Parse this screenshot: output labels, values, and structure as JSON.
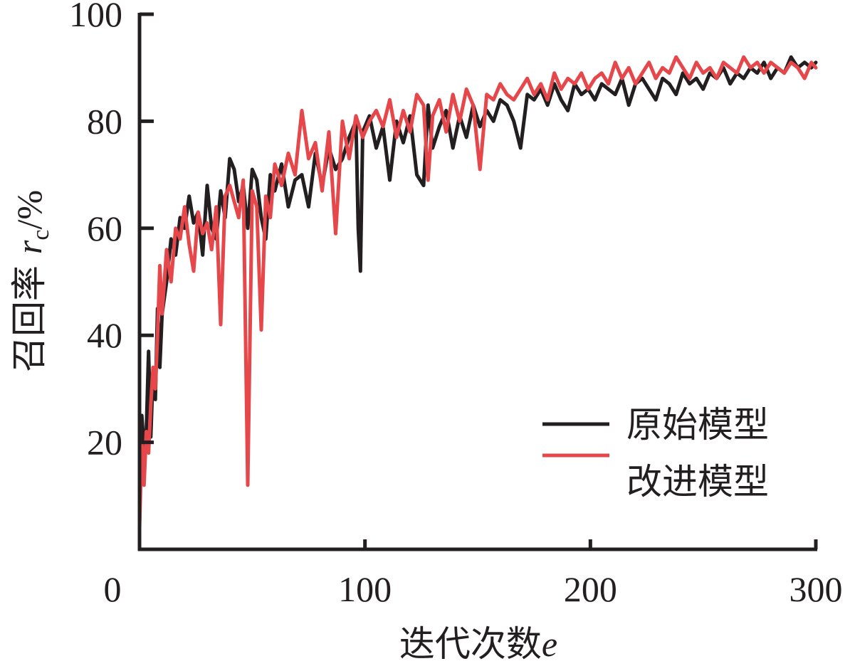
{
  "chart_data": {
    "type": "line",
    "xlabel": "迭代次数",
    "xlabel_var": "e",
    "ylabel": "召回率",
    "ylabel_var": "r",
    "ylabel_sub": "c",
    "ylabel_unit": "/%",
    "xlim": [
      0,
      300
    ],
    "ylim": [
      0,
      100
    ],
    "xticks": [
      0,
      100,
      200,
      300
    ],
    "yticks": [
      20,
      40,
      60,
      80,
      100
    ],
    "grid": false,
    "legend_position": "bottom-right",
    "series": [
      {
        "name": "原始模型",
        "color": "#231f20",
        "x": [
          0,
          1,
          2,
          3,
          4,
          5,
          6,
          7,
          8,
          9,
          10,
          12,
          14,
          16,
          18,
          20,
          22,
          24,
          26,
          28,
          30,
          32,
          34,
          36,
          38,
          40,
          42,
          44,
          46,
          48,
          50,
          52,
          54,
          56,
          58,
          60,
          63,
          66,
          69,
          72,
          75,
          78,
          81,
          84,
          87,
          90,
          93,
          96,
          97,
          98,
          99,
          102,
          105,
          108,
          111,
          114,
          117,
          120,
          123,
          126,
          128,
          130,
          133,
          136,
          139,
          142,
          145,
          148,
          151,
          154,
          157,
          160,
          163,
          166,
          169,
          172,
          175,
          178,
          181,
          184,
          187,
          190,
          193,
          196,
          199,
          202,
          205,
          208,
          211,
          214,
          217,
          220,
          223,
          226,
          229,
          232,
          235,
          238,
          241,
          244,
          247,
          250,
          253,
          256,
          259,
          262,
          265,
          268,
          271,
          274,
          277,
          280,
          283,
          286,
          289,
          292,
          295,
          298,
          300
        ],
        "y": [
          12,
          25,
          19,
          22,
          37,
          21,
          33,
          28,
          45,
          34,
          44,
          50,
          58,
          55,
          62,
          60,
          66,
          61,
          63,
          55,
          68,
          60,
          58,
          67,
          62,
          73,
          71,
          65,
          68,
          60,
          71,
          69,
          62,
          58,
          70,
          67,
          72,
          64,
          69,
          70,
          64,
          74,
          68,
          75,
          71,
          73,
          77,
          80,
          60,
          52,
          78,
          81,
          75,
          79,
          69,
          80,
          76,
          81,
          70,
          68,
          83,
          75,
          79,
          82,
          75,
          81,
          77,
          83,
          79,
          82,
          80,
          84,
          83,
          80,
          75,
          85,
          84,
          86,
          83,
          87,
          84,
          82,
          87,
          85,
          86,
          84,
          87,
          86,
          85,
          88,
          83,
          87,
          88,
          86,
          84,
          88,
          87,
          85,
          89,
          87,
          88,
          86,
          89,
          88,
          90,
          87,
          89,
          88,
          90,
          89,
          91,
          88,
          90,
          89,
          92,
          90,
          91,
          90,
          91
        ]
      },
      {
        "name": "改进模型",
        "color": "#e5474b",
        "x": [
          0,
          1,
          2,
          3,
          4,
          5,
          6,
          7,
          8,
          9,
          10,
          12,
          14,
          16,
          18,
          20,
          22,
          24,
          26,
          28,
          30,
          32,
          34,
          36,
          38,
          40,
          42,
          44,
          46,
          48,
          50,
          52,
          54,
          56,
          58,
          60,
          63,
          66,
          69,
          72,
          75,
          78,
          81,
          84,
          87,
          90,
          93,
          96,
          99,
          102,
          105,
          108,
          111,
          114,
          117,
          120,
          123,
          126,
          128,
          130,
          133,
          136,
          139,
          142,
          145,
          148,
          151,
          154,
          157,
          160,
          163,
          166,
          169,
          172,
          175,
          178,
          181,
          184,
          187,
          190,
          193,
          196,
          199,
          202,
          205,
          208,
          211,
          214,
          217,
          220,
          223,
          226,
          229,
          232,
          235,
          238,
          241,
          244,
          247,
          250,
          253,
          256,
          259,
          262,
          265,
          268,
          271,
          274,
          277,
          280,
          283,
          286,
          289,
          292,
          295,
          298,
          300
        ],
        "y": [
          4,
          20,
          12,
          22,
          18,
          27,
          34,
          30,
          40,
          53,
          44,
          56,
          50,
          60,
          58,
          64,
          57,
          52,
          63,
          59,
          61,
          56,
          64,
          42,
          66,
          68,
          65,
          62,
          69,
          12,
          67,
          64,
          41,
          66,
          62,
          72,
          68,
          74,
          70,
          82,
          73,
          76,
          67,
          78,
          59,
          80,
          73,
          81,
          77,
          80,
          82,
          79,
          84,
          77,
          82,
          78,
          85,
          83,
          69,
          81,
          84,
          78,
          85,
          80,
          86,
          83,
          71,
          85,
          84,
          87,
          85,
          84,
          86,
          88,
          85,
          87,
          84,
          89,
          86,
          88,
          87,
          89,
          86,
          88,
          89,
          87,
          91,
          88,
          90,
          87,
          89,
          91,
          88,
          90,
          89,
          92,
          90,
          88,
          91,
          89,
          90,
          88,
          91,
          90,
          89,
          92,
          90,
          91,
          89,
          91,
          90,
          89,
          91,
          90,
          88,
          91,
          90
        ]
      }
    ]
  }
}
